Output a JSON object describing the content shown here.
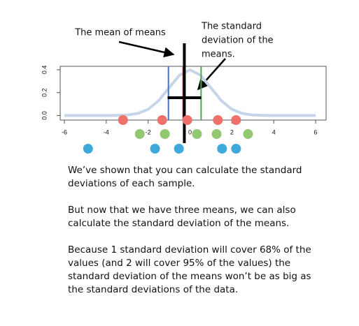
{
  "chart_data": {
    "type": "line",
    "xlim": [
      -6.2,
      6.5
    ],
    "ylim": [
      -0.04,
      0.43
    ],
    "xticks": [
      -6,
      -4,
      -2,
      0,
      2,
      4,
      6
    ],
    "yticks": [
      {
        "value": 0,
        "label": "0.0"
      },
      0.2,
      0.4
    ],
    "curve": {
      "color": "#c6d6e8",
      "x": [
        -6,
        -5.5,
        -5,
        -4.5,
        -4,
        -3.5,
        -3,
        -2.5,
        -2,
        -1.5,
        -1,
        -0.5,
        0,
        0.5,
        1,
        1.5,
        2,
        2.5,
        3,
        3.5,
        4,
        4.5,
        5,
        5.5,
        6
      ],
      "values": [
        0,
        0,
        0,
        0,
        0,
        0.001,
        0.004,
        0.018,
        0.054,
        0.13,
        0.242,
        0.352,
        0.399,
        0.352,
        0.242,
        0.13,
        0.054,
        0.018,
        0.004,
        0.001,
        0,
        0,
        0,
        0,
        0
      ]
    },
    "dot_rows": [
      {
        "color": "#f0706a",
        "x": [
          -3.2,
          -1.33,
          -0.13,
          1.33,
          2.2
        ]
      },
      {
        "color": "#93c873",
        "x": [
          -2.4,
          -1.2,
          0.33,
          1.27,
          2.77
        ]
      },
      {
        "color": "#3fa9dc",
        "x": [
          -4.87,
          -1.67,
          -0.53,
          1.53,
          2.2
        ]
      }
    ],
    "means": [
      {
        "color": "#4a72c4",
        "value": -1.03
      },
      {
        "color": "#e0443f",
        "value": -0.33
      },
      {
        "color": "#4caa4c",
        "value": 0.53
      }
    ],
    "mean_of_means": -0.27,
    "sd_of_means": [
      -1.07,
      0.53
    ],
    "annotations": [
      {
        "lines": [
          "The mean of means"
        ]
      },
      {
        "lines": [
          "The standard",
          "deviation of the",
          "means."
        ]
      }
    ]
  },
  "text": {
    "paragraphs": [
      [
        "We’ve shown that you can calculate the standard",
        "deviations of each sample."
      ],
      [
        "But now that we have three means, we can also",
        "calculate the standard deviation of the means."
      ],
      [
        "Because 1 standard deviation will cover 68% of the",
        "values (and 2 will cover 95% of the values) the",
        "standard deviation of the means won’t be as big as",
        "the standard deviations of the data."
      ]
    ]
  }
}
